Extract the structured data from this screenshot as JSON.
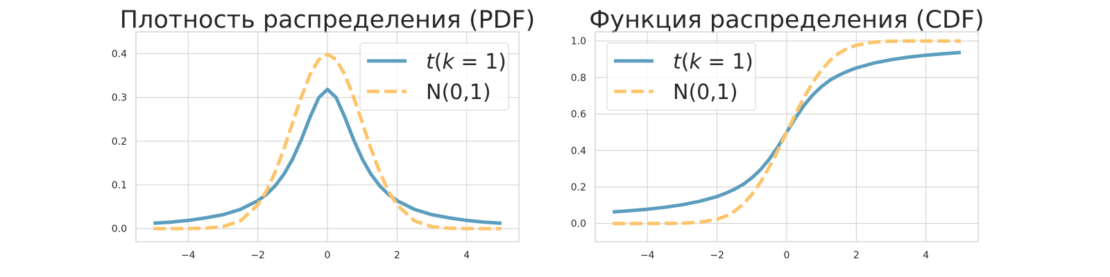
{
  "chart_data": [
    {
      "type": "line",
      "title": "Плотность распределения (PDF)",
      "xlabel": "",
      "ylabel": "",
      "xlim": [
        -5.5,
        5.5
      ],
      "ylim": [
        -0.03,
        0.45
      ],
      "xticks": [
        -4,
        -2,
        0,
        2,
        4
      ],
      "xtick_labels": [
        "−4",
        "−2",
        "0",
        "2",
        "4"
      ],
      "yticks": [
        0.0,
        0.1,
        0.2,
        0.3,
        0.4
      ],
      "ytick_labels": [
        "0.0",
        "0.1",
        "0.2",
        "0.3",
        "0.4"
      ],
      "grid": true,
      "legend_position": "top-right",
      "series": [
        {
          "name": "t(k = 1)",
          "name_parts": [
            "t",
            "(",
            "k",
            " = ",
            "1",
            ")"
          ],
          "color": "#5b9dbc",
          "style": "solid",
          "x": [
            -5,
            -4.5,
            -4,
            -3.5,
            -3,
            -2.5,
            -2,
            -1.75,
            -1.5,
            -1.25,
            -1,
            -0.75,
            -0.5,
            -0.25,
            0,
            0.25,
            0.5,
            0.75,
            1,
            1.25,
            1.5,
            1.75,
            2,
            2.5,
            3,
            3.5,
            4,
            4.5,
            5
          ],
          "y": [
            0.0122,
            0.0149,
            0.0187,
            0.0245,
            0.0318,
            0.0439,
            0.0637,
            0.0783,
            0.0979,
            0.1244,
            0.1592,
            0.2037,
            0.2546,
            0.2996,
            0.3183,
            0.2996,
            0.2546,
            0.2037,
            0.1592,
            0.1244,
            0.0979,
            0.0783,
            0.0637,
            0.0439,
            0.0318,
            0.0245,
            0.0187,
            0.0149,
            0.0122
          ]
        },
        {
          "name": "N(0,1)",
          "color": "#fdc56b",
          "style": "dashed",
          "x": [
            -5,
            -4.5,
            -4,
            -3.5,
            -3,
            -2.5,
            -2,
            -1.75,
            -1.5,
            -1.25,
            -1,
            -0.75,
            -0.5,
            -0.25,
            0,
            0.25,
            0.5,
            0.75,
            1,
            1.25,
            1.5,
            1.75,
            2,
            2.5,
            3,
            3.5,
            4,
            4.5,
            5
          ],
          "y": [
            0.0,
            0.0,
            0.0001,
            0.0009,
            0.0044,
            0.0175,
            0.054,
            0.0863,
            0.1295,
            0.1826,
            0.242,
            0.3011,
            0.3521,
            0.3867,
            0.3989,
            0.3867,
            0.3521,
            0.3011,
            0.242,
            0.1826,
            0.1295,
            0.0863,
            0.054,
            0.0175,
            0.0044,
            0.0009,
            0.0001,
            0.0,
            0.0
          ]
        }
      ]
    },
    {
      "type": "line",
      "title": "Функция распределения (CDF)",
      "xlabel": "",
      "ylabel": "",
      "xlim": [
        -5.5,
        5.5
      ],
      "ylim": [
        -0.1,
        1.05
      ],
      "xticks": [
        -4,
        -2,
        0,
        2,
        4
      ],
      "xtick_labels": [
        "−4",
        "−2",
        "0",
        "2",
        "4"
      ],
      "yticks": [
        0.0,
        0.2,
        0.4,
        0.6,
        0.8,
        1.0
      ],
      "ytick_labels": [
        "0.0",
        "0.2",
        "0.4",
        "0.6",
        "0.8",
        "1.0"
      ],
      "grid": true,
      "legend_position": "top-left",
      "series": [
        {
          "name": "t(k = 1)",
          "name_parts": [
            "t",
            "(",
            "k",
            " = ",
            "1",
            ")"
          ],
          "color": "#5b9dbc",
          "style": "solid",
          "x": [
            -5,
            -4.5,
            -4,
            -3.5,
            -3,
            -2.5,
            -2,
            -1.75,
            -1.5,
            -1.25,
            -1,
            -0.75,
            -0.5,
            -0.25,
            0,
            0.25,
            0.5,
            0.75,
            1,
            1.25,
            1.5,
            1.75,
            2,
            2.5,
            3,
            3.5,
            4,
            4.5,
            5
          ],
          "y": [
            0.0628,
            0.0699,
            0.078,
            0.0886,
            0.1024,
            0.1211,
            0.1476,
            0.1658,
            0.1872,
            0.2141,
            0.25,
            0.2952,
            0.3524,
            0.422,
            0.5,
            0.578,
            0.6476,
            0.7048,
            0.75,
            0.7859,
            0.8128,
            0.8342,
            0.8524,
            0.8789,
            0.8976,
            0.9114,
            0.922,
            0.9301,
            0.9372
          ]
        },
        {
          "name": "N(0,1)",
          "color": "#fdc56b",
          "style": "dashed",
          "x": [
            -5,
            -4.5,
            -4,
            -3.5,
            -3,
            -2.5,
            -2,
            -1.75,
            -1.5,
            -1.25,
            -1,
            -0.75,
            -0.5,
            -0.25,
            0,
            0.25,
            0.5,
            0.75,
            1,
            1.25,
            1.5,
            1.75,
            2,
            2.5,
            3,
            3.5,
            4,
            4.5,
            5
          ],
          "y": [
            0.0,
            0.0,
            0.0,
            0.0002,
            0.0013,
            0.0062,
            0.0228,
            0.0401,
            0.0668,
            0.1056,
            0.1587,
            0.2266,
            0.3085,
            0.4013,
            0.5,
            0.5987,
            0.6915,
            0.7734,
            0.8413,
            0.8944,
            0.9332,
            0.9599,
            0.9772,
            0.9938,
            0.9987,
            0.9998,
            1.0,
            1.0,
            1.0
          ]
        }
      ]
    }
  ]
}
